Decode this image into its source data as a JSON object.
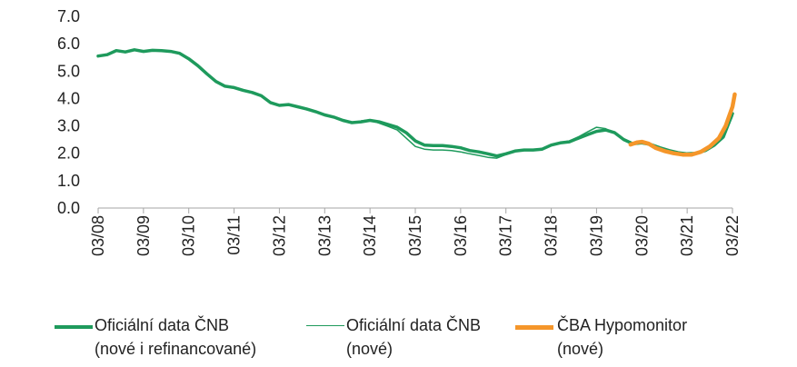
{
  "chart_data": {
    "type": "line",
    "ylim": [
      0,
      7
    ],
    "yticks": [
      "0.0",
      "1.0",
      "2.0",
      "3.0",
      "4.0",
      "5.0",
      "6.0",
      "7.0"
    ],
    "xticks": [
      "03/08",
      "03/09",
      "03/10",
      "03/11",
      "03/12",
      "03/13",
      "03/14",
      "03/15",
      "03/16",
      "03/17",
      "03/18",
      "03/19",
      "03/20",
      "03/21",
      "03/22"
    ],
    "x_unit": "years since 03/08",
    "series": [
      {
        "name_lines": [
          "Oficiální data ČNB",
          "(nové i refinancované)"
        ],
        "color": "#1e9a5c",
        "width": 3.5,
        "points": [
          [
            0.0,
            5.55
          ],
          [
            0.2,
            5.6
          ],
          [
            0.4,
            5.75
          ],
          [
            0.6,
            5.7
          ],
          [
            0.8,
            5.78
          ],
          [
            1.0,
            5.72
          ],
          [
            1.2,
            5.76
          ],
          [
            1.4,
            5.75
          ],
          [
            1.6,
            5.72
          ],
          [
            1.8,
            5.65
          ],
          [
            2.0,
            5.45
          ],
          [
            2.2,
            5.2
          ],
          [
            2.4,
            4.9
          ],
          [
            2.6,
            4.62
          ],
          [
            2.8,
            4.45
          ],
          [
            3.0,
            4.4
          ],
          [
            3.2,
            4.3
          ],
          [
            3.4,
            4.22
          ],
          [
            3.6,
            4.1
          ],
          [
            3.8,
            3.85
          ],
          [
            4.0,
            3.75
          ],
          [
            4.2,
            3.78
          ],
          [
            4.4,
            3.7
          ],
          [
            4.6,
            3.62
          ],
          [
            4.8,
            3.52
          ],
          [
            5.0,
            3.4
          ],
          [
            5.2,
            3.32
          ],
          [
            5.4,
            3.2
          ],
          [
            5.6,
            3.12
          ],
          [
            5.8,
            3.15
          ],
          [
            6.0,
            3.2
          ],
          [
            6.2,
            3.15
          ],
          [
            6.4,
            3.05
          ],
          [
            6.6,
            2.95
          ],
          [
            6.8,
            2.75
          ],
          [
            7.0,
            2.45
          ],
          [
            7.2,
            2.3
          ],
          [
            7.4,
            2.28
          ],
          [
            7.6,
            2.28
          ],
          [
            7.8,
            2.25
          ],
          [
            8.0,
            2.2
          ],
          [
            8.2,
            2.1
          ],
          [
            8.4,
            2.05
          ],
          [
            8.6,
            1.98
          ],
          [
            8.8,
            1.9
          ],
          [
            9.0,
            1.98
          ],
          [
            9.2,
            2.08
          ],
          [
            9.4,
            2.12
          ],
          [
            9.6,
            2.12
          ],
          [
            9.8,
            2.15
          ],
          [
            10.0,
            2.3
          ],
          [
            10.2,
            2.38
          ],
          [
            10.4,
            2.42
          ],
          [
            10.6,
            2.55
          ],
          [
            10.8,
            2.68
          ],
          [
            11.0,
            2.8
          ],
          [
            11.2,
            2.85
          ],
          [
            11.4,
            2.75
          ],
          [
            11.6,
            2.5
          ],
          [
            11.8,
            2.35
          ],
          [
            12.0,
            2.38
          ],
          [
            12.2,
            2.32
          ],
          [
            12.4,
            2.2
          ],
          [
            12.6,
            2.1
          ],
          [
            12.8,
            2.02
          ],
          [
            13.0,
            1.98
          ],
          [
            13.2,
            2.0
          ],
          [
            13.4,
            2.1
          ],
          [
            13.6,
            2.3
          ],
          [
            13.8,
            2.6
          ],
          [
            14.0,
            3.45
          ]
        ]
      },
      {
        "name_lines": [
          "Oficiální data ČNB",
          "(nové)"
        ],
        "color": "#1e9a5c",
        "width": 1.5,
        "points": [
          [
            5.8,
            3.18
          ],
          [
            6.0,
            3.22
          ],
          [
            6.2,
            3.1
          ],
          [
            6.4,
            2.98
          ],
          [
            6.6,
            2.85
          ],
          [
            6.8,
            2.55
          ],
          [
            7.0,
            2.25
          ],
          [
            7.2,
            2.15
          ],
          [
            7.4,
            2.12
          ],
          [
            7.6,
            2.12
          ],
          [
            7.8,
            2.1
          ],
          [
            8.0,
            2.05
          ],
          [
            8.2,
            1.98
          ],
          [
            8.4,
            1.92
          ],
          [
            8.6,
            1.85
          ],
          [
            8.8,
            1.82
          ],
          [
            9.0,
            1.95
          ],
          [
            9.2,
            2.08
          ],
          [
            9.4,
            2.12
          ],
          [
            9.6,
            2.12
          ],
          [
            9.8,
            2.18
          ],
          [
            10.0,
            2.32
          ],
          [
            10.2,
            2.4
          ],
          [
            10.4,
            2.45
          ],
          [
            10.6,
            2.6
          ],
          [
            10.8,
            2.78
          ],
          [
            11.0,
            2.95
          ],
          [
            11.2,
            2.9
          ],
          [
            11.4,
            2.72
          ],
          [
            11.6,
            2.48
          ],
          [
            11.8,
            2.35
          ],
          [
            12.0,
            2.36
          ],
          [
            12.2,
            2.3
          ],
          [
            12.4,
            2.18
          ],
          [
            12.6,
            2.08
          ],
          [
            12.8,
            2.0
          ],
          [
            13.0,
            1.96
          ],
          [
            13.2,
            1.98
          ],
          [
            13.4,
            2.08
          ],
          [
            13.6,
            2.28
          ],
          [
            13.8,
            2.55
          ],
          [
            14.0,
            3.35
          ]
        ]
      },
      {
        "name_lines": [
          "ČBA Hypomonitor",
          "(nové)"
        ],
        "color": "#f5962a",
        "width": 4.5,
        "points": [
          [
            11.75,
            2.32
          ],
          [
            11.9,
            2.4
          ],
          [
            12.0,
            2.42
          ],
          [
            12.15,
            2.35
          ],
          [
            12.3,
            2.2
          ],
          [
            12.5,
            2.08
          ],
          [
            12.7,
            2.0
          ],
          [
            12.9,
            1.95
          ],
          [
            13.1,
            1.95
          ],
          [
            13.3,
            2.05
          ],
          [
            13.5,
            2.25
          ],
          [
            13.7,
            2.55
          ],
          [
            13.85,
            3.0
          ],
          [
            14.0,
            3.7
          ],
          [
            14.05,
            4.15
          ]
        ]
      }
    ],
    "grid": false,
    "legend_position": "bottom"
  }
}
